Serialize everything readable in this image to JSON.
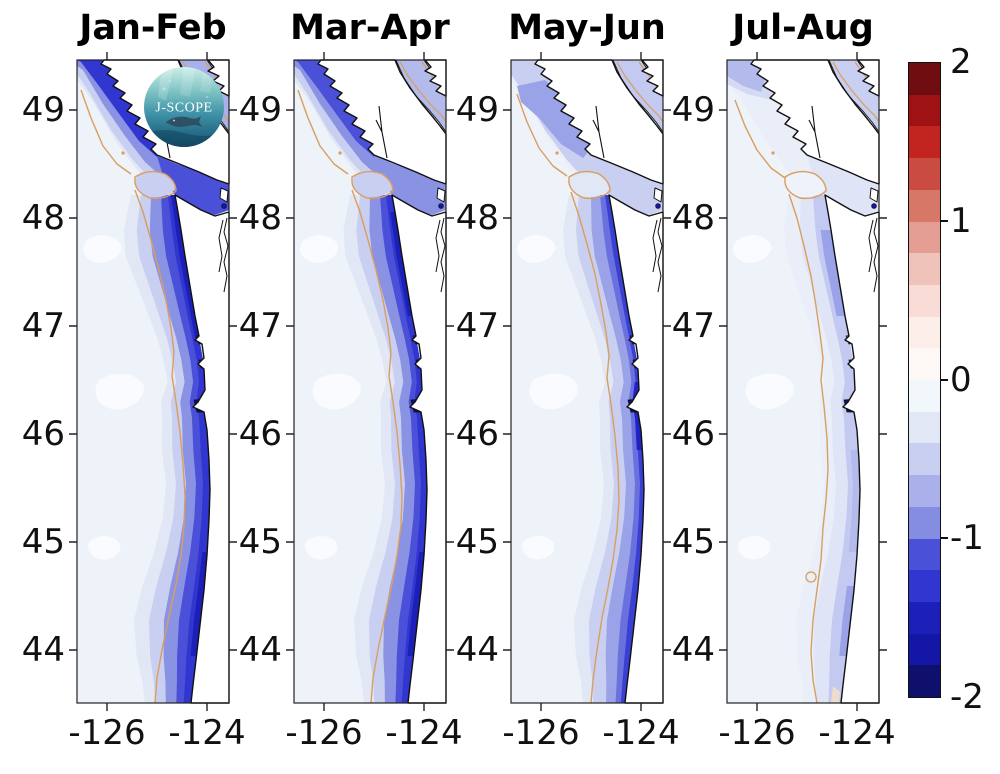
{
  "titles": [
    "Jan-Feb",
    "Mar-Apr",
    "May-Jun",
    "Jul-Aug"
  ],
  "axes": {
    "y_tick_labels": [
      "49",
      "48",
      "47",
      "46",
      "45",
      "44"
    ],
    "x_tick_labels": [
      "-126",
      "-124"
    ]
  },
  "colorbar": {
    "tick_labels": [
      "2",
      "1",
      "0",
      "-1",
      "-2"
    ],
    "colors_top_to_bottom": [
      "#6f0d10",
      "#9e1214",
      "#c2251f",
      "#ca4b41",
      "#d67768",
      "#e39d92",
      "#efc3ba",
      "#f8dcd5",
      "#fceee9",
      "#fdf8f6",
      "#f2f7fb",
      "#e2e7f6",
      "#c9cff1",
      "#aab1ea",
      "#858de2",
      "#4a50d8",
      "#3036cf",
      "#1d20b8",
      "#1416a5",
      "#0e106c"
    ]
  },
  "logo": {
    "label": "J-SCOPE"
  },
  "palette": {
    "ocean_bg": "#eef2f9",
    "white_patch": "#fcfdff",
    "band_l4": "#e2e7f6",
    "band_l3": "#c9cff1",
    "band_l2": "#8a92e4",
    "band_l1": "#4a50d8",
    "band_core": "#3036cf",
    "band_dark": "#1d20b8",
    "blob_mid": "#9aa2e8",
    "blob_soft": "#b3baec",
    "blob_faint": "#d5daf4",
    "pale_band": "#dfe4f7",
    "palest_band": "#eaeef9",
    "estuary_navy": "#0e106c",
    "estuary_blue": "#1416a5",
    "bay_blue": "#3036cf",
    "contour_orange": "#d99e5e",
    "coast_black": "#111111",
    "land_white": "#ffffff",
    "tan_spot": "#f3dfc8"
  },
  "chart_data": {
    "type": "heatmap",
    "title": "Seasonal bimonthly anomaly maps with J-SCOPE logo",
    "panels": [
      {
        "title": "Jan-Feb",
        "nearshore_band_value": -1.3,
        "offshore_value": -0.1,
        "strait_value": -0.9,
        "estuary_value": -1.9
      },
      {
        "title": "Mar-Apr",
        "nearshore_band_value": -1.2,
        "offshore_value": -0.1,
        "strait_value": -0.8,
        "estuary_value": -1.9
      },
      {
        "title": "May-Jun",
        "nearshore_band_value": -1.1,
        "offshore_value": -0.1,
        "strait_value": -0.5,
        "estuary_value": -1.9
      },
      {
        "title": "Jul-Aug",
        "nearshore_band_value": -0.5,
        "offshore_value": -0.05,
        "strait_value": -0.3,
        "estuary_value": -1.8
      }
    ],
    "x": {
      "tick_values": [
        -126,
        -124
      ],
      "range_lon": [
        -126.6,
        -123.5
      ]
    },
    "y": {
      "tick_values": [
        49,
        48,
        47,
        46,
        45,
        44
      ],
      "range_lat": [
        43.5,
        49.5
      ]
    },
    "colorbar": {
      "range": [
        -2,
        2
      ],
      "step": 0.2,
      "tick_values": [
        2,
        1,
        0,
        -1,
        -2
      ],
      "n_levels": 20
    },
    "overlays": {
      "contour_line_color": "#d99e5e"
    },
    "legend_position": "right",
    "grid": false
  }
}
